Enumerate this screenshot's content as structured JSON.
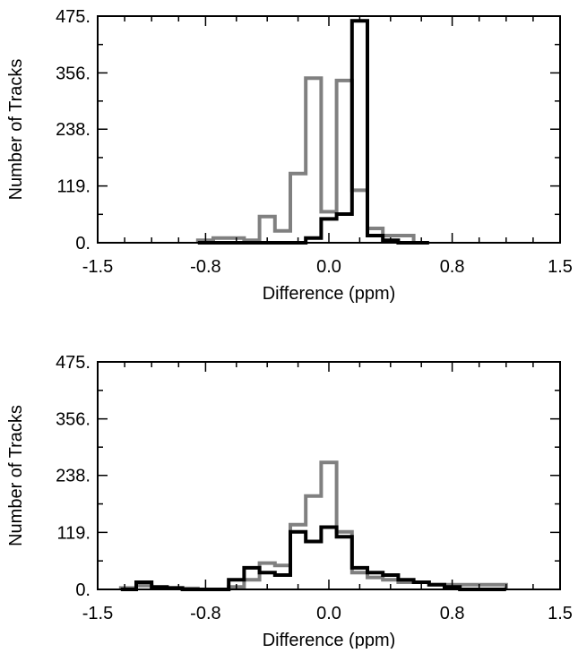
{
  "chart_data": [
    {
      "type": "histogram",
      "xlabel": "Difference (ppm)",
      "ylabel": "Number of Tracks",
      "xlim": [
        -1.5,
        1.5
      ],
      "ylim": [
        0,
        475
      ],
      "x_ticks": [
        "-1.5",
        "-0.8",
        "0.0",
        "0.8",
        "1.5"
      ],
      "x_tick_values": [
        -1.5,
        -0.8,
        0.0,
        0.8,
        1.5
      ],
      "y_ticks": [
        "0.",
        "119.",
        "238.",
        "356.",
        "475."
      ],
      "y_tick_values": [
        0,
        119,
        238,
        356,
        475
      ],
      "bin_edges": [
        -0.85,
        -0.75,
        -0.65,
        -0.55,
        -0.45,
        -0.35,
        -0.25,
        -0.15,
        -0.05,
        0.05,
        0.15,
        0.25,
        0.35,
        0.45,
        0.55,
        0.65
      ],
      "series": [
        {
          "color": "#808080",
          "counts": [
            5,
            10,
            10,
            5,
            55,
            25,
            145,
            345,
            65,
            340,
            110,
            30,
            15,
            15,
            0
          ]
        },
        {
          "color": "#000000",
          "counts": [
            0,
            0,
            0,
            0,
            0,
            0,
            0,
            10,
            50,
            60,
            465,
            15,
            5,
            0,
            0
          ]
        }
      ]
    },
    {
      "type": "histogram",
      "xlabel": "Difference (ppm)",
      "ylabel": "Number of Tracks",
      "xlim": [
        -1.5,
        1.5
      ],
      "ylim": [
        0,
        475
      ],
      "x_ticks": [
        "-1.5",
        "-0.8",
        "0.0",
        "0.8",
        "1.5"
      ],
      "x_tick_values": [
        -1.5,
        -0.8,
        0.0,
        0.8,
        1.5
      ],
      "y_ticks": [
        "0.",
        "119.",
        "238.",
        "356.",
        "475."
      ],
      "y_tick_values": [
        0,
        119,
        238,
        356,
        475
      ],
      "bin_edges": [
        -1.35,
        -1.25,
        -1.15,
        -1.05,
        -0.95,
        -0.85,
        -0.75,
        -0.65,
        -0.55,
        -0.45,
        -0.35,
        -0.25,
        -0.15,
        -0.05,
        0.05,
        0.15,
        0.25,
        0.35,
        0.45,
        0.55,
        0.65,
        0.75,
        0.85,
        0.95,
        1.05,
        1.15
      ],
      "series": [
        {
          "color": "#808080",
          "counts": [
            3,
            8,
            3,
            3,
            2,
            0,
            0,
            5,
            20,
            55,
            50,
            135,
            195,
            265,
            120,
            35,
            25,
            20,
            15,
            15,
            10,
            10,
            10,
            10,
            10
          ]
        },
        {
          "color": "#000000",
          "counts": [
            0,
            15,
            5,
            3,
            0,
            0,
            0,
            20,
            45,
            35,
            30,
            120,
            100,
            130,
            110,
            45,
            35,
            30,
            20,
            15,
            10,
            5,
            0,
            0,
            0
          ]
        }
      ]
    }
  ]
}
